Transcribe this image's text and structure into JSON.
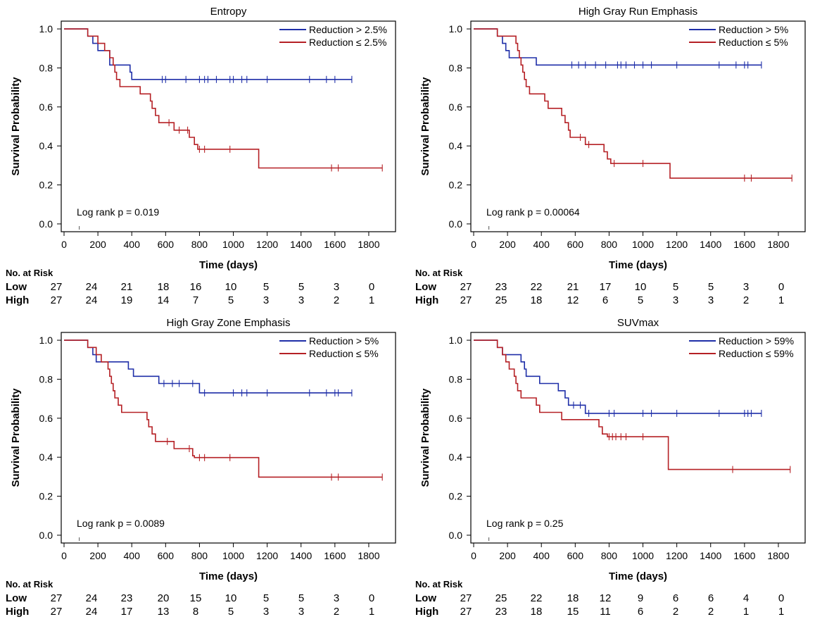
{
  "colors": {
    "high": "#1f2fa8",
    "low": "#b52025",
    "axis": "#000000"
  },
  "chart_data": [
    {
      "type": "line",
      "title": "Entropy",
      "xlabel": "Time (days)",
      "ylabel": "Survival Probability",
      "xlim": [
        0,
        1900
      ],
      "ylim": [
        -0.04,
        1.04
      ],
      "x_ticks": [
        0,
        200,
        400,
        600,
        800,
        1000,
        1200,
        1400,
        1600,
        1800
      ],
      "y_ticks": [
        0.0,
        0.2,
        0.4,
        0.6,
        0.8,
        1.0
      ],
      "y_tick_labels": [
        "0.0",
        "0.2",
        "0.4",
        "0.6",
        "0.8",
        "1.0"
      ],
      "legend": [
        "Reduction > 2.5%",
        "Reduction ≤ 2.5%"
      ],
      "p_value": "Log rank p = 0.019",
      "series": [
        {
          "name": "Reduction > 2.5%",
          "color_key": "high",
          "steps": [
            [
              0,
              1.0
            ],
            [
              140,
              0.963
            ],
            [
              170,
              0.926
            ],
            [
              200,
              0.889
            ],
            [
              270,
              0.815
            ],
            [
              390,
              0.778
            ],
            [
              400,
              0.741
            ],
            [
              1700,
              0.741
            ]
          ],
          "censor": [
            580,
            600,
            720,
            800,
            830,
            850,
            900,
            980,
            1000,
            1050,
            1080,
            1200,
            1450,
            1550,
            1600,
            1700
          ]
        },
        {
          "name": "Reduction ≤ 2.5%",
          "color_key": "low",
          "steps": [
            [
              0,
              1.0
            ],
            [
              140,
              0.963
            ],
            [
              200,
              0.926
            ],
            [
              240,
              0.889
            ],
            [
              270,
              0.852
            ],
            [
              290,
              0.815
            ],
            [
              300,
              0.778
            ],
            [
              310,
              0.741
            ],
            [
              330,
              0.704
            ],
            [
              450,
              0.667
            ],
            [
              510,
              0.63
            ],
            [
              520,
              0.593
            ],
            [
              540,
              0.556
            ],
            [
              560,
              0.519
            ],
            [
              650,
              0.481
            ],
            [
              740,
              0.444
            ],
            [
              770,
              0.407
            ],
            [
              790,
              0.383
            ],
            [
              1150,
              0.287
            ],
            [
              1880,
              0.287
            ]
          ],
          "censor": [
            620,
            680,
            730,
            800,
            830,
            980,
            1580,
            1620,
            1880
          ]
        }
      ],
      "risk_times": [
        "0",
        "200",
        "400",
        "600",
        "800",
        "1000",
        "1200",
        "1400",
        "1600",
        "1800"
      ],
      "risk": {
        "Low": [
          "27",
          "24",
          "21",
          "18",
          "16",
          "10",
          "5",
          "5",
          "3",
          "0"
        ],
        "High": [
          "27",
          "24",
          "19",
          "14",
          "7",
          "5",
          "3",
          "3",
          "2",
          "1"
        ]
      }
    },
    {
      "type": "line",
      "title": "High Gray Run Emphasis",
      "xlabel": "Time (days)",
      "ylabel": "Survival Probability",
      "xlim": [
        0,
        1900
      ],
      "ylim": [
        -0.04,
        1.04
      ],
      "x_ticks": [
        0,
        200,
        400,
        600,
        800,
        1000,
        1200,
        1400,
        1600,
        1800
      ],
      "y_ticks": [
        0.0,
        0.2,
        0.4,
        0.6,
        0.8,
        1.0
      ],
      "y_tick_labels": [
        "0.0",
        "0.2",
        "0.4",
        "0.6",
        "0.8",
        "1.0"
      ],
      "legend": [
        "Reduction > 5%",
        "Reduction ≤ 5%"
      ],
      "p_value": "Log rank p = 0.00064",
      "series": [
        {
          "name": "Reduction > 5%",
          "color_key": "high",
          "steps": [
            [
              0,
              1.0
            ],
            [
              140,
              0.963
            ],
            [
              170,
              0.926
            ],
            [
              190,
              0.889
            ],
            [
              210,
              0.852
            ],
            [
              370,
              0.815
            ],
            [
              1700,
              0.815
            ]
          ],
          "censor": [
            580,
            620,
            660,
            720,
            780,
            850,
            870,
            900,
            950,
            1000,
            1050,
            1200,
            1450,
            1550,
            1600,
            1620,
            1700
          ]
        },
        {
          "name": "Reduction ≤ 5%",
          "color_key": "low",
          "steps": [
            [
              0,
              1.0
            ],
            [
              140,
              0.963
            ],
            [
              250,
              0.926
            ],
            [
              260,
              0.889
            ],
            [
              270,
              0.852
            ],
            [
              280,
              0.815
            ],
            [
              290,
              0.778
            ],
            [
              300,
              0.741
            ],
            [
              310,
              0.704
            ],
            [
              330,
              0.667
            ],
            [
              420,
              0.63
            ],
            [
              440,
              0.593
            ],
            [
              520,
              0.556
            ],
            [
              540,
              0.519
            ],
            [
              560,
              0.481
            ],
            [
              570,
              0.444
            ],
            [
              660,
              0.407
            ],
            [
              770,
              0.37
            ],
            [
              790,
              0.333
            ],
            [
              810,
              0.31
            ],
            [
              1160,
              0.235
            ],
            [
              1880,
              0.235
            ]
          ],
          "censor": [
            630,
            680,
            830,
            1000,
            1600,
            1640,
            1880
          ]
        }
      ],
      "risk_times": [
        "0",
        "200",
        "400",
        "600",
        "800",
        "1000",
        "1200",
        "1400",
        "1600",
        "1800"
      ],
      "risk": {
        "Low": [
          "27",
          "23",
          "22",
          "21",
          "17",
          "10",
          "5",
          "5",
          "3",
          "0"
        ],
        "High": [
          "27",
          "25",
          "18",
          "12",
          "6",
          "5",
          "3",
          "3",
          "2",
          "1"
        ]
      }
    },
    {
      "type": "line",
      "title": "High Gray Zone Emphasis",
      "xlabel": "Time (days)",
      "ylabel": "Survival Probability",
      "xlim": [
        0,
        1900
      ],
      "ylim": [
        -0.04,
        1.04
      ],
      "x_ticks": [
        0,
        200,
        400,
        600,
        800,
        1000,
        1200,
        1400,
        1600,
        1800
      ],
      "y_ticks": [
        0.0,
        0.2,
        0.4,
        0.6,
        0.8,
        1.0
      ],
      "y_tick_labels": [
        "0.0",
        "0.2",
        "0.4",
        "0.6",
        "0.8",
        "1.0"
      ],
      "legend": [
        "Reduction > 5%",
        "Reduction ≤ 5%"
      ],
      "p_value": "Log rank p = 0.0089",
      "series": [
        {
          "name": "Reduction > 5%",
          "color_key": "high",
          "steps": [
            [
              0,
              1.0
            ],
            [
              140,
              0.963
            ],
            [
              170,
              0.926
            ],
            [
              190,
              0.889
            ],
            [
              380,
              0.852
            ],
            [
              410,
              0.815
            ],
            [
              560,
              0.778
            ],
            [
              800,
              0.73
            ],
            [
              1700,
              0.73
            ]
          ],
          "censor": [
            590,
            640,
            680,
            760,
            830,
            1000,
            1050,
            1080,
            1200,
            1450,
            1550,
            1600,
            1620,
            1700
          ]
        },
        {
          "name": "Reduction ≤ 5%",
          "color_key": "low",
          "steps": [
            [
              0,
              1.0
            ],
            [
              140,
              0.963
            ],
            [
              190,
              0.926
            ],
            [
              220,
              0.889
            ],
            [
              260,
              0.852
            ],
            [
              270,
              0.815
            ],
            [
              280,
              0.778
            ],
            [
              290,
              0.741
            ],
            [
              300,
              0.704
            ],
            [
              320,
              0.667
            ],
            [
              340,
              0.63
            ],
            [
              490,
              0.593
            ],
            [
              500,
              0.556
            ],
            [
              520,
              0.519
            ],
            [
              540,
              0.481
            ],
            [
              650,
              0.444
            ],
            [
              760,
              0.407
            ],
            [
              770,
              0.398
            ],
            [
              1150,
              0.298
            ],
            [
              1880,
              0.298
            ]
          ],
          "censor": [
            610,
            740,
            800,
            830,
            980,
            1580,
            1620,
            1880
          ]
        }
      ],
      "risk_times": [
        "0",
        "200",
        "400",
        "600",
        "800",
        "1000",
        "1200",
        "1400",
        "1600",
        "1800"
      ],
      "risk": {
        "Low": [
          "27",
          "24",
          "23",
          "20",
          "15",
          "10",
          "5",
          "5",
          "3",
          "0"
        ],
        "High": [
          "27",
          "24",
          "17",
          "13",
          "8",
          "5",
          "3",
          "3",
          "2",
          "1"
        ]
      }
    },
    {
      "type": "line",
      "title": "SUVmax",
      "xlabel": "Time (days)",
      "ylabel": "Survival Probability",
      "xlim": [
        0,
        1900
      ],
      "ylim": [
        -0.04,
        1.04
      ],
      "x_ticks": [
        0,
        200,
        400,
        600,
        800,
        1000,
        1200,
        1400,
        1600,
        1800
      ],
      "y_ticks": [
        0.0,
        0.2,
        0.4,
        0.6,
        0.8,
        1.0
      ],
      "y_tick_labels": [
        "0.0",
        "0.2",
        "0.4",
        "0.6",
        "0.8",
        "1.0"
      ],
      "legend": [
        "Reduction > 59%",
        "Reduction ≤ 59%"
      ],
      "p_value": "Log rank p = 0.25",
      "series": [
        {
          "name": "Reduction > 59%",
          "color_key": "high",
          "steps": [
            [
              0,
              1.0
            ],
            [
              140,
              0.963
            ],
            [
              170,
              0.926
            ],
            [
              280,
              0.889
            ],
            [
              300,
              0.852
            ],
            [
              310,
              0.815
            ],
            [
              390,
              0.778
            ],
            [
              500,
              0.741
            ],
            [
              540,
              0.704
            ],
            [
              560,
              0.667
            ],
            [
              660,
              0.625
            ],
            [
              1700,
              0.625
            ]
          ],
          "censor": [
            590,
            630,
            680,
            800,
            830,
            1000,
            1050,
            1200,
            1450,
            1600,
            1620,
            1640,
            1700
          ]
        },
        {
          "name": "Reduction ≤ 59%",
          "color_key": "low",
          "steps": [
            [
              0,
              1.0
            ],
            [
              140,
              0.963
            ],
            [
              170,
              0.926
            ],
            [
              190,
              0.889
            ],
            [
              210,
              0.852
            ],
            [
              240,
              0.815
            ],
            [
              250,
              0.778
            ],
            [
              260,
              0.741
            ],
            [
              280,
              0.704
            ],
            [
              370,
              0.667
            ],
            [
              390,
              0.63
            ],
            [
              520,
              0.593
            ],
            [
              740,
              0.556
            ],
            [
              760,
              0.519
            ],
            [
              790,
              0.505
            ],
            [
              1150,
              0.337
            ],
            [
              1870,
              0.337
            ]
          ],
          "censor": [
            800,
            820,
            840,
            870,
            900,
            1000,
            1530,
            1870
          ]
        }
      ],
      "risk_times": [
        "0",
        "200",
        "400",
        "600",
        "800",
        "1000",
        "1200",
        "1400",
        "1600",
        "1800"
      ],
      "risk": {
        "Low": [
          "27",
          "25",
          "22",
          "18",
          "12",
          "9",
          "6",
          "6",
          "4",
          "0"
        ],
        "High": [
          "27",
          "23",
          "18",
          "15",
          "11",
          "6",
          "2",
          "2",
          "1",
          "1"
        ]
      }
    }
  ],
  "risk_table": {
    "header": "No. at Risk",
    "low_label": "Low",
    "high_label": "High"
  }
}
